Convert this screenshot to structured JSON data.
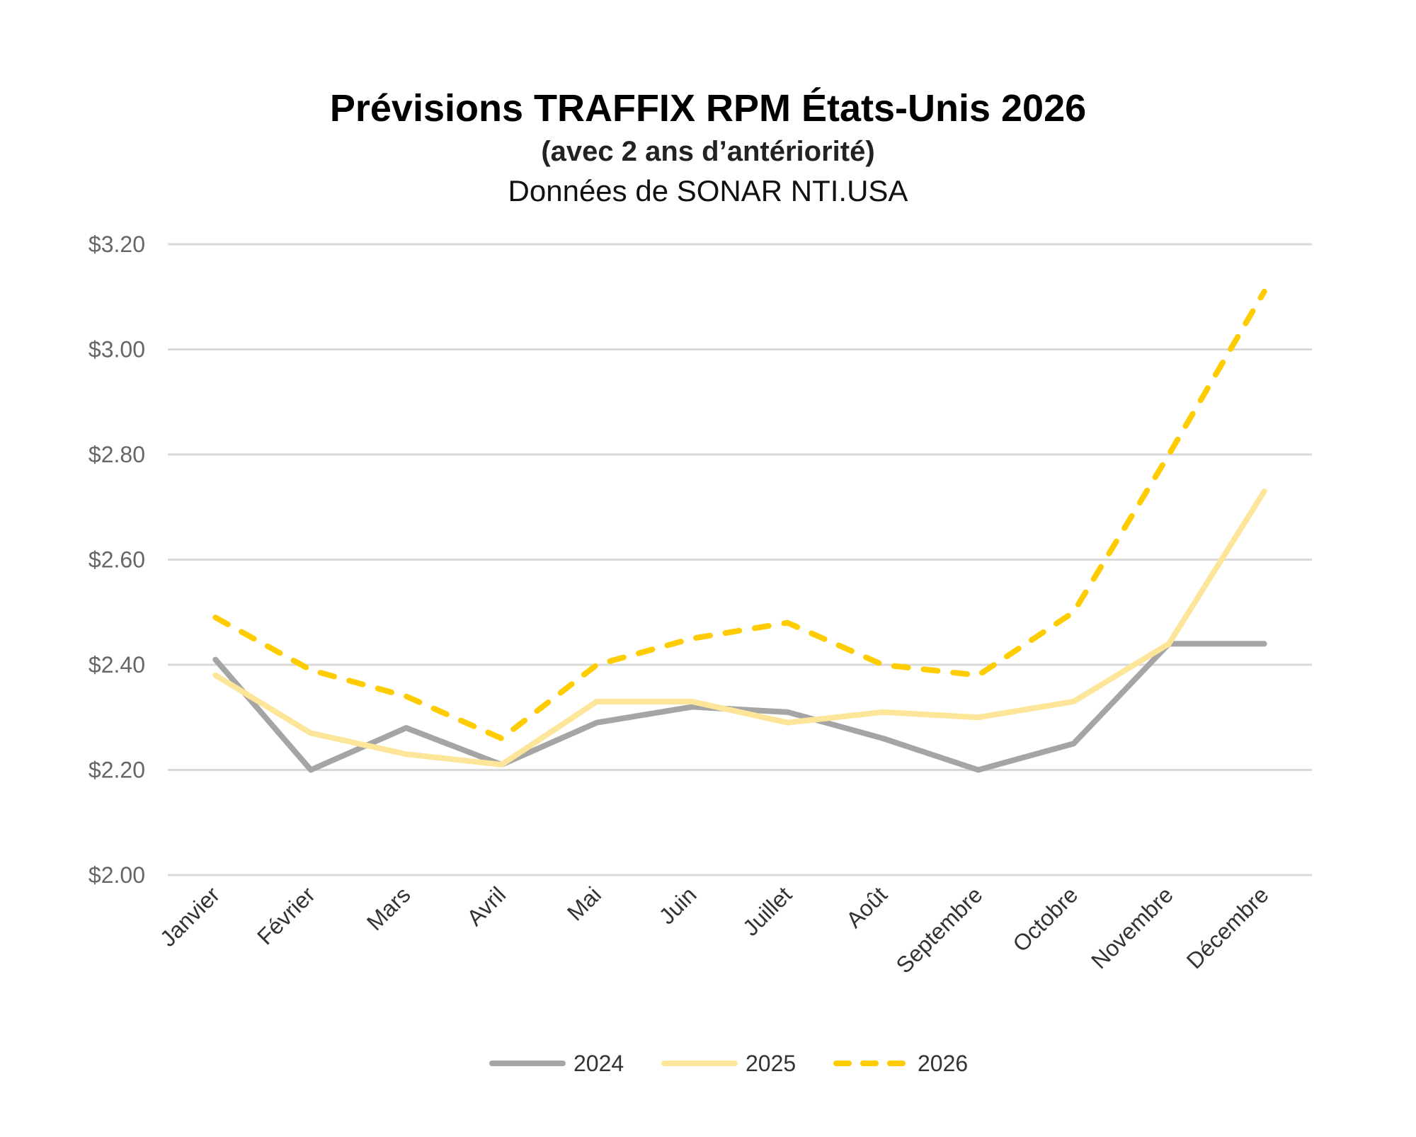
{
  "chart_data": {
    "type": "line",
    "title": "Prévisions TRAFFIX RPM États-Unis 2026",
    "subtitle": "(avec 2 ans d’antériorité)",
    "source": "Données de SONAR NTI.USA",
    "categories": [
      "Janvier",
      "Février",
      "Mars",
      "Avril",
      "Mai",
      "Juin",
      "Juillet",
      "Août",
      "Septembre",
      "Octobre",
      "Novembre",
      "Décembre"
    ],
    "ylim": [
      2.0,
      3.2
    ],
    "yticks": [
      2.0,
      2.2,
      2.4,
      2.6,
      2.8,
      3.0,
      3.2
    ],
    "ytick_labels": [
      "$2.00",
      "$2.20",
      "$2.40",
      "$2.60",
      "$2.80",
      "$3.00",
      "$3.20"
    ],
    "grid": true,
    "legend": "bottom",
    "series": [
      {
        "name": "2024",
        "color": "#a5a5a5",
        "dash": false,
        "values": [
          2.41,
          2.2,
          2.28,
          2.21,
          2.29,
          2.32,
          2.31,
          2.26,
          2.2,
          2.25,
          2.44,
          2.44
        ]
      },
      {
        "name": "2025",
        "color": "#fde699",
        "dash": false,
        "values": [
          2.38,
          2.27,
          2.23,
          2.21,
          2.33,
          2.33,
          2.29,
          2.31,
          2.3,
          2.33,
          2.44,
          2.73
        ]
      },
      {
        "name": "2026",
        "color": "#ffcc00",
        "dash": true,
        "values": [
          2.49,
          2.39,
          2.34,
          2.26,
          2.4,
          2.45,
          2.48,
          2.4,
          2.38,
          2.5,
          2.8,
          3.11
        ]
      }
    ]
  }
}
